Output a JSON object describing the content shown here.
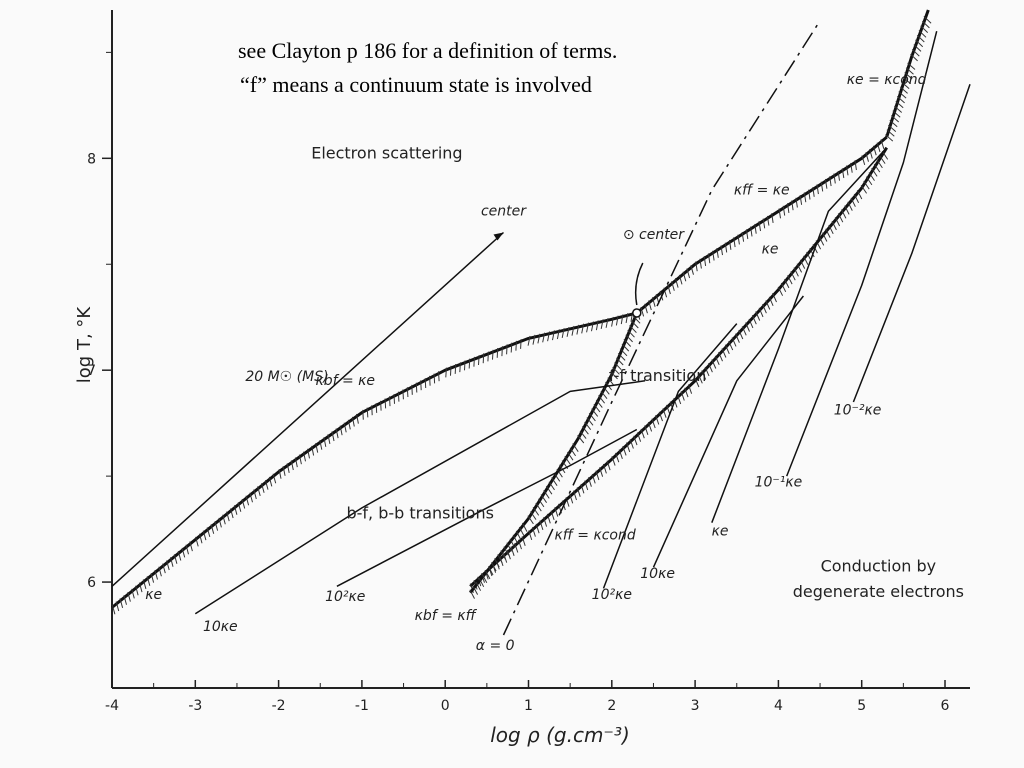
{
  "notes": {
    "line1": "see Clayton p 186 for a definition of terms.",
    "line2": "“f” means a continuum state is involved"
  },
  "chart_data": {
    "type": "line",
    "xlabel": "log ρ (g.cm⁻³)",
    "ylabel": "log T, °K",
    "xlim": [
      -4,
      6.3
    ],
    "ylim": [
      5.5,
      8.7
    ],
    "x_ticks": [
      "-4",
      "-3",
      "-2",
      "-1",
      "0",
      "1",
      "2",
      "3",
      "4",
      "5",
      "6"
    ],
    "y_ticks": [
      "6",
      "7",
      "8"
    ],
    "grid": false,
    "region_labels": [
      {
        "text": "Electron scattering",
        "x": -0.7,
        "y": 8.0
      },
      {
        "text": "b-f, b-b transitions",
        "x": -0.3,
        "y": 6.3
      },
      {
        "text": "f-f transition",
        "x": 2.55,
        "y": 6.95
      },
      {
        "text": "Conduction by",
        "x": 5.2,
        "y": 6.05
      },
      {
        "text": "degenerate electrons",
        "x": 5.2,
        "y": 5.93
      }
    ],
    "curve_labels": [
      {
        "text": "κbf = κe",
        "x": -1.2,
        "y": 6.93
      },
      {
        "text": "κff = κe",
        "x": 3.8,
        "y": 7.83
      },
      {
        "text": "κff = κcond",
        "x": 1.8,
        "y": 6.2
      },
      {
        "text": "κe = κcond",
        "x": 5.3,
        "y": 8.35
      },
      {
        "text": "κbf = κff",
        "x": 0.0,
        "y": 5.82
      },
      {
        "text": "α = 0",
        "x": 0.6,
        "y": 5.68
      },
      {
        "text": "κe",
        "x": -3.5,
        "y": 5.92
      },
      {
        "text": "κe",
        "x": 3.9,
        "y": 7.55
      },
      {
        "text": "κe",
        "x": 3.3,
        "y": 6.22
      },
      {
        "text": "10κe",
        "x": -2.7,
        "y": 5.77
      },
      {
        "text": "10²κe",
        "x": -1.2,
        "y": 5.91
      },
      {
        "text": "10²κe",
        "x": 2.0,
        "y": 5.92
      },
      {
        "text": "10κe",
        "x": 2.55,
        "y": 6.02
      },
      {
        "text": "10⁻¹κe",
        "x": 4.0,
        "y": 6.45
      },
      {
        "text": "10⁻²κe",
        "x": 4.95,
        "y": 6.79
      },
      {
        "text": "20 M☉ (MS)",
        "x": -1.9,
        "y": 6.95
      },
      {
        "text": "center",
        "x": 0.7,
        "y": 7.73
      },
      {
        "text": "⊙ center",
        "x": 2.5,
        "y": 7.62
      }
    ],
    "series": [
      {
        "name": "κbf = κe",
        "hatched": true,
        "x": [
          -4.0,
          -3.0,
          -2.0,
          -1.0,
          0.0,
          1.0,
          2.0,
          2.3
        ],
        "y": [
          5.88,
          6.2,
          6.52,
          6.8,
          7.0,
          7.15,
          7.24,
          7.27
        ]
      },
      {
        "name": "κff = κe",
        "hatched": true,
        "x": [
          2.3,
          3.0,
          4.0,
          5.0,
          5.3
        ],
        "y": [
          7.27,
          7.5,
          7.75,
          8.0,
          8.1
        ]
      },
      {
        "name": "κff = κcond",
        "hatched": true,
        "x": [
          0.3,
          1.0,
          2.0,
          3.0,
          4.0,
          5.0,
          5.3
        ],
        "y": [
          5.98,
          6.23,
          6.58,
          6.95,
          7.38,
          7.86,
          8.05
        ]
      },
      {
        "name": "κbf = κff",
        "hatched": true,
        "x": [
          0.3,
          1.0,
          1.6,
          2.0,
          2.3
        ],
        "y": [
          5.95,
          6.3,
          6.68,
          6.98,
          7.27
        ]
      },
      {
        "name": "κe = κcond",
        "hatched": true,
        "x": [
          5.3,
          5.6,
          5.8
        ],
        "y": [
          8.1,
          8.48,
          8.7
        ]
      },
      {
        "name": "α = 0",
        "dashed": true,
        "x": [
          0.7,
          2.0,
          3.2,
          4.5
        ],
        "y": [
          5.75,
          6.85,
          7.85,
          8.65
        ]
      },
      {
        "name": "20 M☉ (MS)",
        "x": [
          -4.0,
          0.7
        ],
        "y": [
          5.98,
          7.65
        ]
      },
      {
        "name": "10κe",
        "x": [
          -3.0,
          -1.0,
          1.5,
          2.4
        ],
        "y": [
          5.85,
          6.35,
          6.9,
          6.95
        ]
      },
      {
        "name": "10²κe",
        "x": [
          -1.3,
          0.5,
          1.5,
          2.3
        ],
        "y": [
          5.98,
          6.35,
          6.55,
          6.72
        ]
      },
      {
        "name": "10²κe",
        "x": [
          1.9,
          2.8,
          3.5
        ],
        "y": [
          5.97,
          6.9,
          7.22
        ]
      },
      {
        "name": "10κe",
        "x": [
          2.5,
          3.5,
          4.3
        ],
        "y": [
          6.07,
          6.95,
          7.35
        ]
      },
      {
        "name": "κe",
        "x": [
          3.2,
          4.0,
          4.6,
          5.3
        ],
        "y": [
          6.28,
          7.1,
          7.75,
          8.05
        ]
      },
      {
        "name": "10⁻¹κe",
        "x": [
          4.1,
          5.0,
          5.5,
          5.9
        ],
        "y": [
          6.5,
          7.4,
          7.98,
          8.6
        ]
      },
      {
        "name": "10⁻²κe",
        "x": [
          4.9,
          5.6,
          6.3
        ],
        "y": [
          6.85,
          7.55,
          8.35
        ]
      }
    ],
    "markers": [
      {
        "name": "⊙ center",
        "x": 2.3,
        "y": 7.27
      }
    ]
  }
}
